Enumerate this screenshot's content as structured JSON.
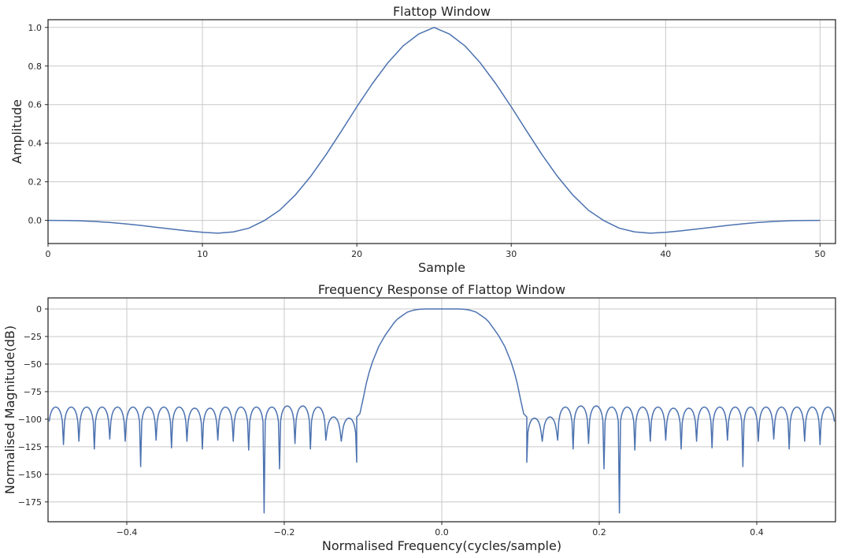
{
  "colors": {
    "series": "#4c72b0",
    "grid": "#c8c8c8",
    "axis": "#262626"
  },
  "chart_data": [
    {
      "type": "line",
      "title": "Flattop Window",
      "xlabel": "Sample",
      "ylabel": "Amplitude",
      "xlim": [
        0,
        51
      ],
      "ylim": [
        -0.12,
        1.04
      ],
      "xticks": [
        0,
        10,
        20,
        30,
        40,
        50
      ],
      "xtick_labels": [
        "0",
        "10",
        "20",
        "30",
        "40",
        "50"
      ],
      "yticks": [
        0.0,
        0.2,
        0.4,
        0.6,
        0.8,
        1.0
      ],
      "ytick_labels": [
        "0.0",
        "0.2",
        "0.4",
        "0.6",
        "0.8",
        "1.0"
      ],
      "grid": true,
      "series": [
        {
          "x": [
            0,
            1,
            2,
            3,
            4,
            5,
            6,
            7,
            8,
            9,
            10,
            11,
            12,
            13,
            14,
            15,
            16,
            17,
            18,
            19,
            20,
            21,
            22,
            23,
            24,
            25,
            26,
            27,
            28,
            29,
            30,
            31,
            32,
            33,
            34,
            35,
            36,
            37,
            38,
            39,
            40,
            41,
            42,
            43,
            44,
            45,
            46,
            47,
            48,
            49,
            50
          ],
          "y": [
            0.0,
            -0.0003,
            -0.0022,
            -0.0056,
            -0.0109,
            -0.0178,
            -0.0262,
            -0.0357,
            -0.0451,
            -0.0541,
            -0.0617,
            -0.0665,
            -0.0596,
            -0.0406,
            -0.0014,
            0.0525,
            0.1303,
            0.227,
            0.3398,
            0.4629,
            0.5887,
            0.7081,
            0.8158,
            0.9045,
            0.9655,
            1.0,
            0.9655,
            0.9045,
            0.8158,
            0.7081,
            0.5887,
            0.4629,
            0.3398,
            0.227,
            0.1303,
            0.0525,
            -0.0014,
            -0.0406,
            -0.0596,
            -0.0665,
            -0.0617,
            -0.0541,
            -0.0451,
            -0.0357,
            -0.0262,
            -0.0178,
            -0.0109,
            -0.0056,
            -0.0022,
            -0.0003,
            0.0
          ]
        }
      ]
    },
    {
      "type": "line",
      "title": "Frequency Response of Flattop Window",
      "xlabel": "Normalised Frequency(cycles/sample)",
      "ylabel": "Normalised Magnitude(dB)",
      "xlim": [
        -0.5,
        0.5
      ],
      "ylim": [
        -193,
        10
      ],
      "xticks": [
        -0.4,
        -0.2,
        0.0,
        0.2,
        0.4
      ],
      "xtick_labels": [
        "−0.4",
        "−0.2",
        "0.0",
        "0.2",
        "0.4"
      ],
      "yticks": [
        0,
        -25,
        -50,
        -75,
        -100,
        -125,
        -150,
        -175
      ],
      "ytick_labels": [
        "0",
        "−25",
        "−50",
        "−75",
        "−100",
        "−125",
        "−150",
        "−175"
      ],
      "grid": true,
      "mainlobe": [
        [
          -0.108,
          -98
        ],
        [
          -0.104,
          -95
        ],
        [
          -0.1,
          -82
        ],
        [
          -0.096,
          -68
        ],
        [
          -0.092,
          -57
        ],
        [
          -0.088,
          -48
        ],
        [
          -0.084,
          -41
        ],
        [
          -0.08,
          -34
        ],
        [
          -0.076,
          -29
        ],
        [
          -0.072,
          -24
        ],
        [
          -0.068,
          -20
        ],
        [
          -0.064,
          -16
        ],
        [
          -0.06,
          -12
        ],
        [
          -0.056,
          -9
        ],
        [
          -0.052,
          -7
        ],
        [
          -0.048,
          -5
        ],
        [
          -0.044,
          -3
        ],
        [
          -0.04,
          -2
        ],
        [
          -0.036,
          -1.2
        ],
        [
          -0.032,
          -0.6
        ],
        [
          -0.028,
          -0.3
        ],
        [
          -0.024,
          -0.1
        ],
        [
          -0.02,
          0
        ],
        [
          0.0,
          0
        ],
        [
          0.02,
          0
        ],
        [
          0.024,
          -0.1
        ],
        [
          0.028,
          -0.3
        ],
        [
          0.032,
          -0.6
        ],
        [
          0.036,
          -1.2
        ],
        [
          0.04,
          -2
        ],
        [
          0.044,
          -3
        ],
        [
          0.048,
          -5
        ],
        [
          0.052,
          -7
        ],
        [
          0.056,
          -9
        ],
        [
          0.06,
          -12
        ],
        [
          0.064,
          -16
        ],
        [
          0.068,
          -20
        ],
        [
          0.072,
          -24
        ],
        [
          0.076,
          -29
        ],
        [
          0.08,
          -34
        ],
        [
          0.084,
          -41
        ],
        [
          0.088,
          -48
        ],
        [
          0.092,
          -57
        ],
        [
          0.096,
          -68
        ],
        [
          0.1,
          -82
        ],
        [
          0.104,
          -95
        ],
        [
          0.108,
          -98
        ]
      ],
      "sidelobe_start": 0.108,
      "sidelobe_step": 0.0196,
      "sidelobe_peak_db": [
        -99,
        -98,
        -89,
        -88,
        -88,
        -89,
        -89,
        -89,
        -89,
        -90,
        -90,
        -89,
        -89,
        -89,
        -89,
        -89,
        -89,
        -89,
        -89,
        -89,
        -89,
        -89,
        -89,
        -89
      ],
      "sidelobe_null_db": [
        -139,
        -120,
        -119,
        -127,
        -122,
        -145,
        -185,
        -128,
        -120,
        -119,
        -127,
        -120,
        -126,
        -119,
        -143,
        -120,
        -118,
        -127,
        -120,
        -123,
        -120,
        -120,
        -120,
        -120
      ]
    }
  ]
}
